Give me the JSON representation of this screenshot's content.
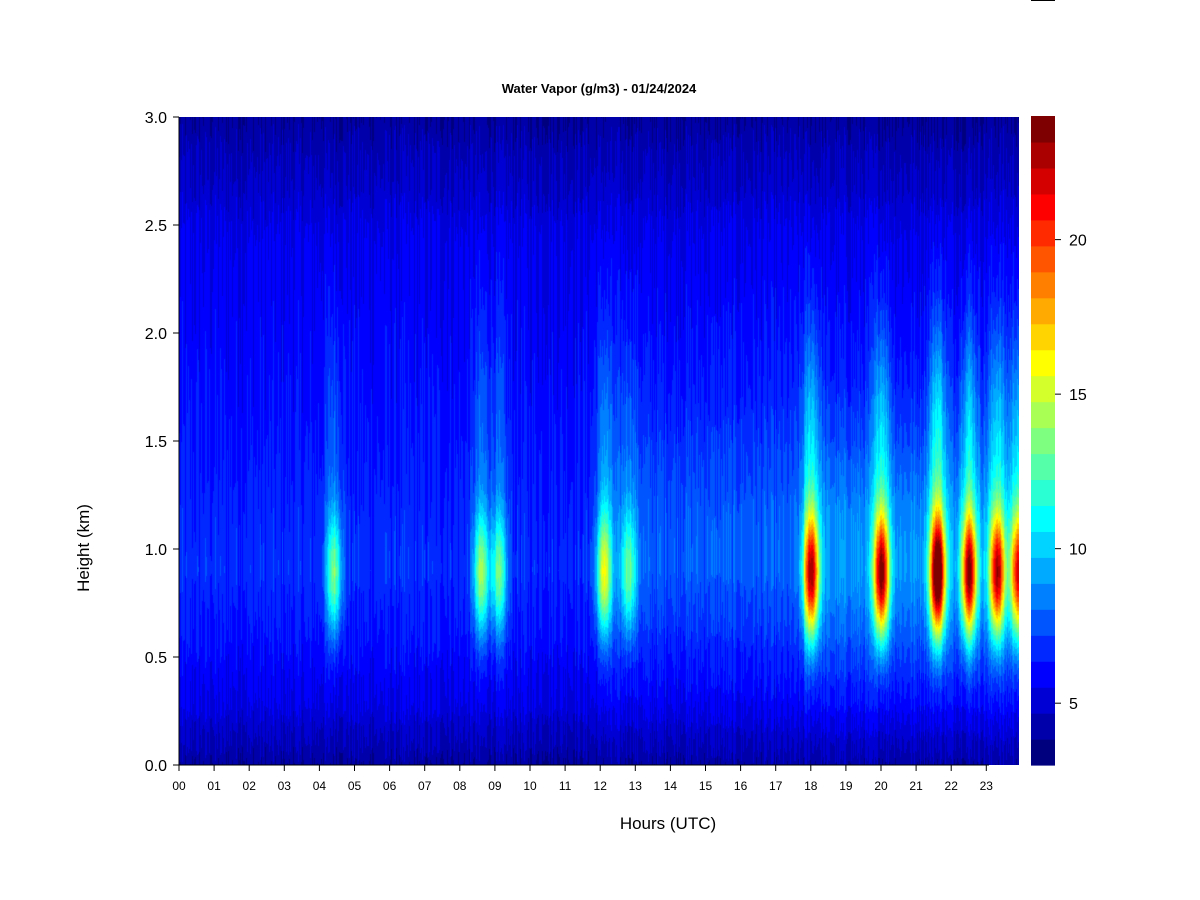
{
  "chart_data": {
    "type": "heatmap",
    "title": "Water Vapor (g/m3) - 01/24/2024",
    "xlabel": "Hours (UTC)",
    "ylabel": "Height (km)",
    "xlim": [
      0,
      24
    ],
    "ylim": [
      0,
      3.0
    ],
    "x_tick_labels": [
      "00",
      "01",
      "02",
      "03",
      "04",
      "05",
      "06",
      "07",
      "08",
      "09",
      "10",
      "11",
      "12",
      "13",
      "14",
      "15",
      "16",
      "17",
      "18",
      "19",
      "20",
      "21",
      "22",
      "23"
    ],
    "y_tick_values": [
      0,
      0.5,
      1.0,
      1.5,
      2.0,
      2.5,
      3.0
    ],
    "y_tick_labels": [
      "0.0",
      "0.5",
      "1.0",
      "1.5",
      "2.0",
      "2.5",
      "3.0"
    ],
    "colorbar": {
      "min": 3,
      "max": 24,
      "tick_values": [
        5,
        10,
        15,
        20
      ],
      "tick_labels": [
        "5",
        "10",
        "15",
        "20"
      ],
      "colors": [
        "#00007f",
        "#0000aa",
        "#0000d4",
        "#0000ff",
        "#0028ff",
        "#0055ff",
        "#007fff",
        "#00aaff",
        "#00d4ff",
        "#00ffff",
        "#2affd4",
        "#55ffaa",
        "#7fff7f",
        "#aaff55",
        "#d4ff2a",
        "#ffff00",
        "#ffd400",
        "#ffaa00",
        "#ff7f00",
        "#ff5500",
        "#ff2a00",
        "#ff0000",
        "#d40000",
        "#aa0000",
        "#7f0000"
      ]
    },
    "background_value_by_height_km": [
      [
        0.0,
        4.0
      ],
      [
        0.1,
        4.5
      ],
      [
        0.3,
        5.5
      ],
      [
        0.6,
        6.2
      ],
      [
        0.9,
        6.8
      ],
      [
        1.2,
        6.6
      ],
      [
        1.5,
        6.2
      ],
      [
        1.8,
        6.0
      ],
      [
        2.1,
        5.8
      ],
      [
        2.4,
        5.6
      ],
      [
        2.7,
        4.8
      ],
      [
        3.0,
        4.0
      ]
    ],
    "moist_bands": [
      {
        "hour": 4.4,
        "peak_value": 13.0
      },
      {
        "hour": 8.6,
        "peak_value": 13.5
      },
      {
        "hour": 9.1,
        "peak_value": 12.5
      },
      {
        "hour": 12.1,
        "peak_value": 14.5
      },
      {
        "hour": 12.8,
        "peak_value": 12.0
      },
      {
        "hour": 18.0,
        "peak_value": 20.0
      },
      {
        "hour": 20.0,
        "peak_value": 21.0
      },
      {
        "hour": 21.6,
        "peak_value": 23.5
      },
      {
        "hour": 22.5,
        "peak_value": 20.5
      },
      {
        "hour": 23.3,
        "peak_value": 20.0
      },
      {
        "hour": 23.9,
        "peak_value": 19.0
      }
    ],
    "grid": false,
    "legend": "colorbar-right"
  }
}
